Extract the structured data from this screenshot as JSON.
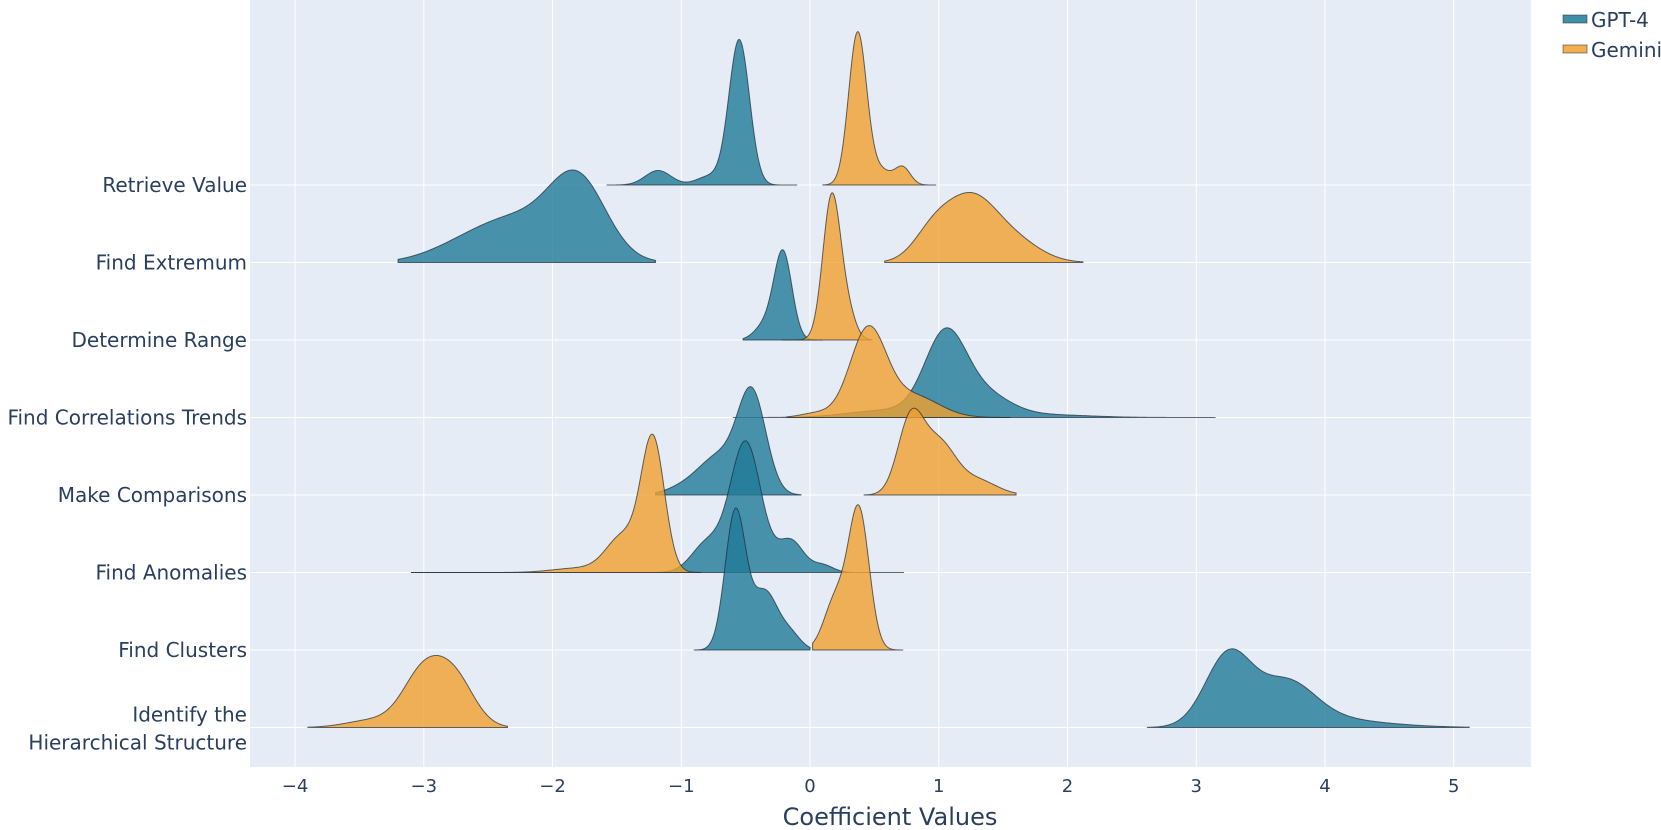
{
  "chart_data": {
    "type": "ridgeline",
    "xlabel": "Coefficient Values",
    "xlim": [
      -4.35,
      5.6
    ],
    "xticks": [
      -4,
      -3,
      -2,
      -1,
      0,
      1,
      2,
      3,
      4,
      5
    ],
    "xtick_labels": [
      "−4",
      "−3",
      "−2",
      "−1",
      "0",
      "1",
      "2",
      "3",
      "4",
      "5"
    ],
    "grid": true,
    "legend_position": "top-right",
    "categories": [
      "Retrieve Value",
      "Find Extremum",
      "Determine Range",
      "Find Correlations Trends",
      "Make Comparisons",
      "Find Anomalies",
      "Find Clusters",
      "Identify the Hierarchical Structure"
    ],
    "category_label_lines": [
      [
        "Retrieve Value"
      ],
      [
        "Find Extremum"
      ],
      [
        "Determine Range"
      ],
      [
        "Find Correlations Trends"
      ],
      [
        "Make Comparisons"
      ],
      [
        "Find Anomalies"
      ],
      [
        "Find Clusters"
      ],
      [
        "Identify the",
        "Hierarchical Structure"
      ]
    ],
    "series": [
      {
        "name": "GPT-4",
        "color": "#1f7a99",
        "distributions": [
          {
            "peak": -0.55,
            "min": -1.58,
            "max": -0.1,
            "peak_density": 1.0,
            "components": [
              {
                "mu": -0.55,
                "sd": 0.08,
                "w": 1.0
              },
              {
                "mu": -1.18,
                "sd": 0.1,
                "w": 0.1
              },
              {
                "mu": -0.78,
                "sd": 0.1,
                "w": 0.06
              }
            ]
          },
          {
            "peak": -1.8,
            "min": -3.2,
            "max": -1.2,
            "peak_density": 0.55,
            "components": [
              {
                "mu": -1.8,
                "sd": 0.22,
                "w": 0.52
              },
              {
                "mu": -2.3,
                "sd": 0.35,
                "w": 0.3
              },
              {
                "mu": -2.8,
                "sd": 0.25,
                "w": 0.04
              }
            ]
          },
          {
            "peak": -0.2,
            "min": -0.52,
            "max": 0.1,
            "peak_density": 0.6,
            "components": [
              {
                "mu": -0.21,
                "sd": 0.07,
                "w": 0.6
              },
              {
                "mu": -0.35,
                "sd": 0.08,
                "w": 0.1
              }
            ]
          },
          {
            "peak": 1.05,
            "min": -0.6,
            "max": 3.15,
            "peak_density": 0.6,
            "components": [
              {
                "mu": 1.05,
                "sd": 0.16,
                "w": 0.55
              },
              {
                "mu": 1.35,
                "sd": 0.2,
                "w": 0.15
              },
              {
                "mu": 1.8,
                "sd": 0.35,
                "w": 0.02
              },
              {
                "mu": 0.6,
                "sd": 0.3,
                "w": 0.05
              }
            ]
          },
          {
            "peak": -0.45,
            "min": -1.2,
            "max": -0.07,
            "peak_density": 0.75,
            "components": [
              {
                "mu": -0.45,
                "sd": 0.11,
                "w": 0.68
              },
              {
                "mu": -0.7,
                "sd": 0.15,
                "w": 0.25
              },
              {
                "mu": -0.95,
                "sd": 0.15,
                "w": 0.06
              }
            ]
          },
          {
            "peak": -0.5,
            "min": -3.1,
            "max": 0.73,
            "peak_density": 0.95,
            "components": [
              {
                "mu": -0.5,
                "sd": 0.12,
                "w": 0.9
              },
              {
                "mu": -0.15,
                "sd": 0.1,
                "w": 0.22
              },
              {
                "mu": 0.1,
                "sd": 0.08,
                "w": 0.05
              },
              {
                "mu": -0.8,
                "sd": 0.12,
                "w": 0.2
              }
            ]
          },
          {
            "peak": -0.58,
            "min": -0.9,
            "max": 0.0,
            "peak_density": 1.0,
            "components": [
              {
                "mu": -0.58,
                "sd": 0.08,
                "w": 0.95
              },
              {
                "mu": -0.35,
                "sd": 0.1,
                "w": 0.4
              },
              {
                "mu": -0.15,
                "sd": 0.08,
                "w": 0.1
              }
            ]
          },
          {
            "peak": 3.25,
            "min": 2.62,
            "max": 5.12,
            "peak_density": 0.55,
            "components": [
              {
                "mu": 3.25,
                "sd": 0.18,
                "w": 0.5
              },
              {
                "mu": 3.7,
                "sd": 0.22,
                "w": 0.3
              },
              {
                "mu": 4.1,
                "sd": 0.3,
                "w": 0.05
              },
              {
                "mu": 4.6,
                "sd": 0.3,
                "w": 0.01
              }
            ]
          }
        ]
      },
      {
        "name": "Gemini",
        "color": "#f0a030",
        "distributions": [
          {
            "peak": 0.37,
            "min": 0.1,
            "max": 0.98,
            "peak_density": 1.05,
            "components": [
              {
                "mu": 0.37,
                "sd": 0.07,
                "w": 1.05
              },
              {
                "mu": 0.72,
                "sd": 0.06,
                "w": 0.12
              },
              {
                "mu": 0.55,
                "sd": 0.08,
                "w": 0.1
              }
            ]
          },
          {
            "peak": 1.25,
            "min": 0.58,
            "max": 2.12,
            "peak_density": 0.48,
            "components": [
              {
                "mu": 1.25,
                "sd": 0.2,
                "w": 0.43
              },
              {
                "mu": 0.95,
                "sd": 0.15,
                "w": 0.18
              },
              {
                "mu": 1.6,
                "sd": 0.2,
                "w": 0.13
              }
            ]
          },
          {
            "peak": 0.17,
            "min": -0.22,
            "max": 0.48,
            "peak_density": 1.05,
            "components": [
              {
                "mu": 0.17,
                "sd": 0.07,
                "w": 1.0
              },
              {
                "mu": 0.3,
                "sd": 0.06,
                "w": 0.15
              }
            ]
          },
          {
            "peak": 0.45,
            "min": -0.18,
            "max": 1.55,
            "peak_density": 0.62,
            "components": [
              {
                "mu": 0.45,
                "sd": 0.14,
                "w": 0.6
              },
              {
                "mu": 0.8,
                "sd": 0.2,
                "w": 0.15
              },
              {
                "mu": 0.05,
                "sd": 0.12,
                "w": 0.03
              }
            ]
          },
          {
            "peak": 0.8,
            "min": 0.42,
            "max": 1.6,
            "peak_density": 0.58,
            "components": [
              {
                "mu": 0.78,
                "sd": 0.1,
                "w": 0.5
              },
              {
                "mu": 1.0,
                "sd": 0.13,
                "w": 0.35
              },
              {
                "mu": 1.3,
                "sd": 0.15,
                "w": 0.1
              }
            ]
          },
          {
            "peak": -1.22,
            "min": -3.1,
            "max": -0.85,
            "peak_density": 0.95,
            "components": [
              {
                "mu": -1.22,
                "sd": 0.09,
                "w": 0.9
              },
              {
                "mu": -1.45,
                "sd": 0.13,
                "w": 0.25
              },
              {
                "mu": -1.8,
                "sd": 0.2,
                "w": 0.03
              }
            ]
          },
          {
            "peak": 0.37,
            "min": 0.02,
            "max": 0.72,
            "peak_density": 1.0,
            "components": [
              {
                "mu": 0.38,
                "sd": 0.08,
                "w": 0.95
              },
              {
                "mu": 0.2,
                "sd": 0.09,
                "w": 0.35
              }
            ]
          },
          {
            "peak": -3.0,
            "min": -3.9,
            "max": -2.35,
            "peak_density": 0.42,
            "components": [
              {
                "mu": -3.0,
                "sd": 0.16,
                "w": 0.38
              },
              {
                "mu": -2.75,
                "sd": 0.15,
                "w": 0.3
              },
              {
                "mu": -3.4,
                "sd": 0.2,
                "w": 0.05
              }
            ]
          }
        ]
      }
    ]
  }
}
